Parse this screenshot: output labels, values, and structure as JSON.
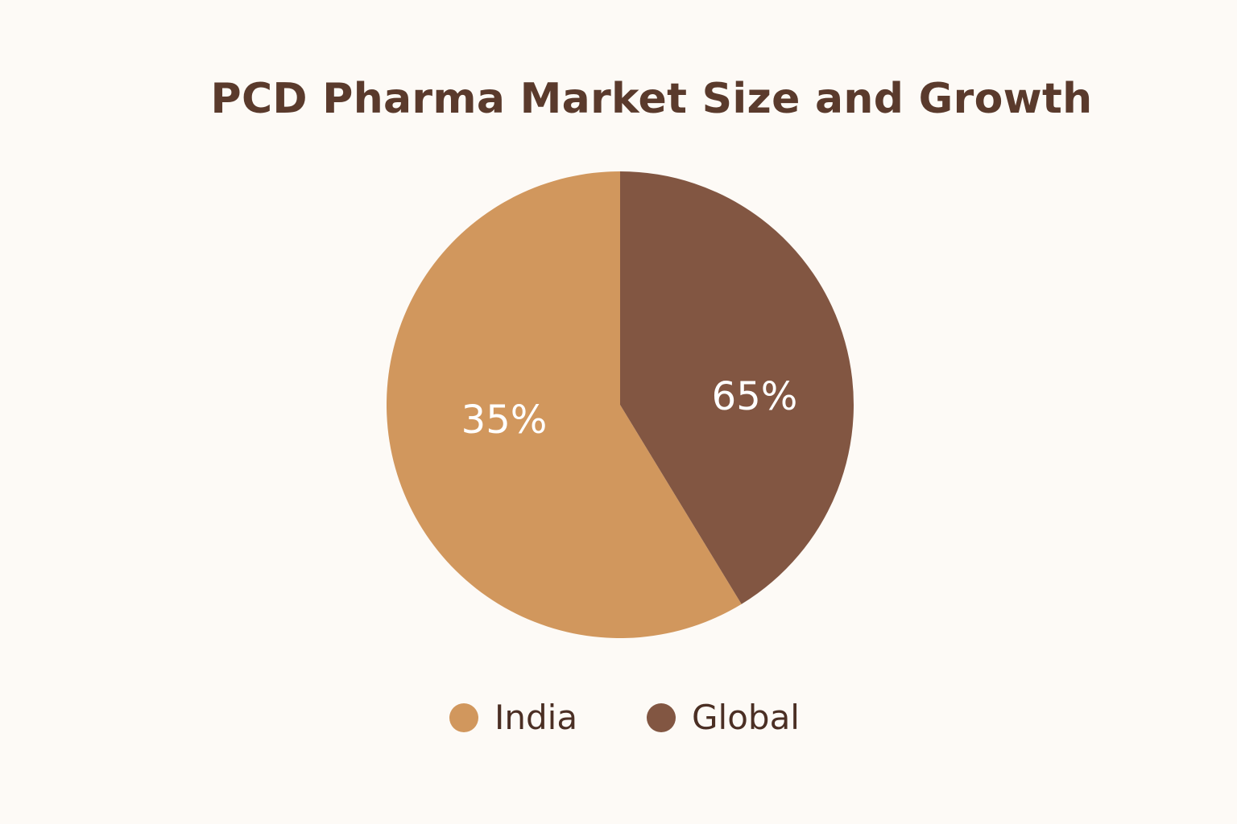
{
  "chart_data": {
    "type": "pie",
    "title": "PCD Pharma Market Size and Growth",
    "slices": [
      {
        "name": "India",
        "value": 35,
        "label": "35%",
        "color": "#d1975d"
      },
      {
        "name": "Global",
        "value": 65,
        "label": "65%",
        "color": "#825642"
      }
    ],
    "legend_position": "bottom"
  },
  "colors": {
    "background": "#fdfaf6",
    "title": "#5a3a2c",
    "legend_text": "#4b2f24",
    "slice_label": "#ffffff"
  }
}
